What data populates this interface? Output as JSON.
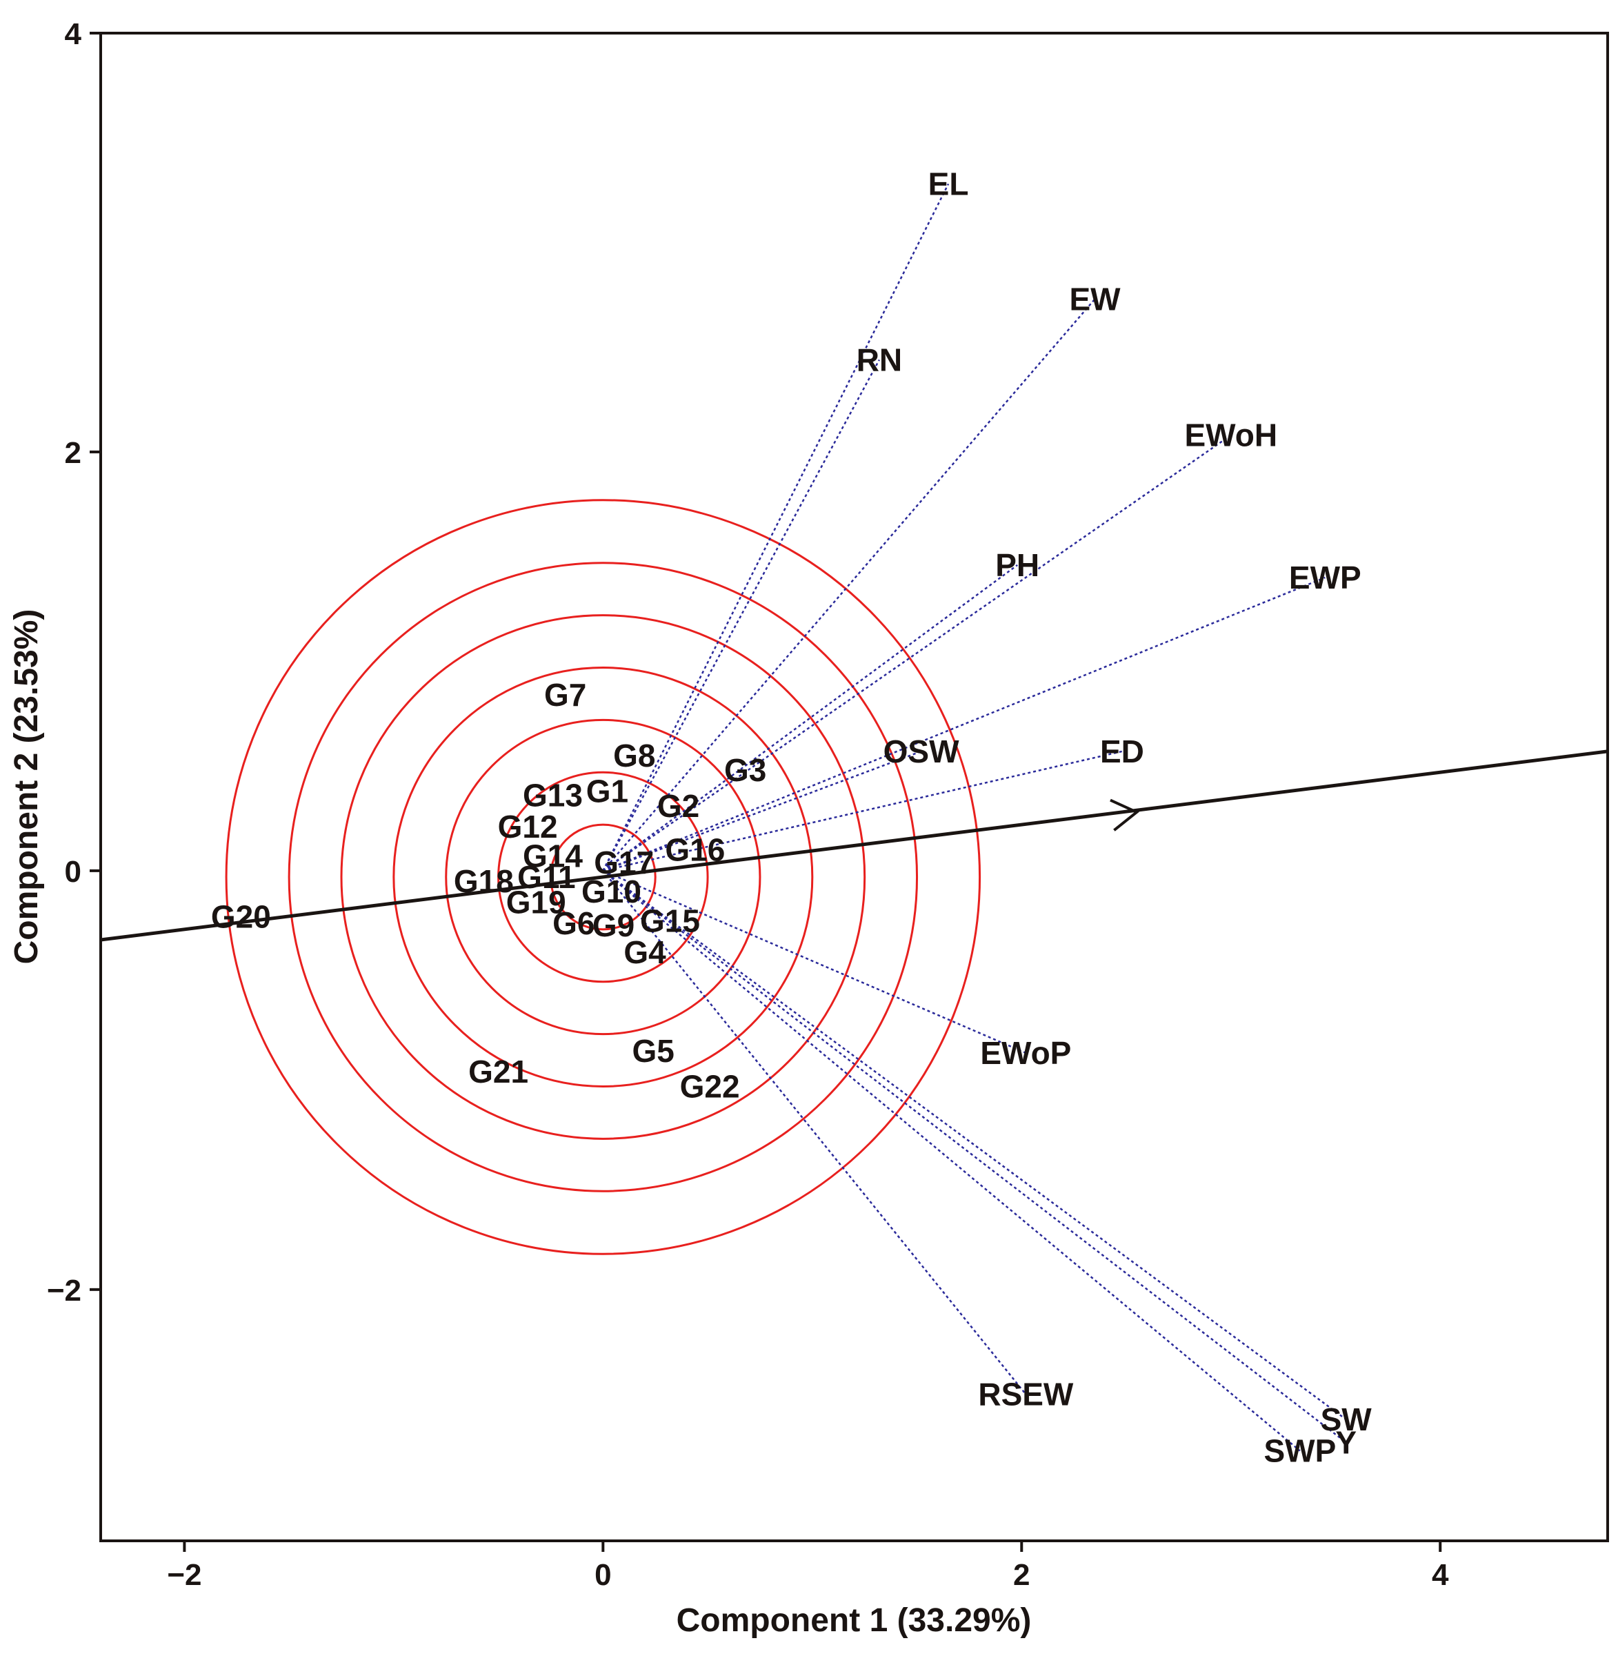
{
  "chart_data": {
    "type": "scatter",
    "subtype": "GGE biplot",
    "xlabel": "Component 1 (33.29%)",
    "ylabel": "Component 2 (23.53%)",
    "xlim": [
      -2.4,
      4.8
    ],
    "ylim": [
      -3.2,
      4.0
    ],
    "xticks": [
      -2,
      0,
      2,
      4
    ],
    "yticks": [
      -2,
      0,
      2,
      4
    ],
    "xtick_labels": [
      "−2",
      "0",
      "2",
      "4"
    ],
    "ytick_labels": [
      "−2",
      "0",
      "2",
      "4"
    ],
    "colors": {
      "axis": "#1a1412",
      "circles": "#e8201e",
      "vectors": "#2a2a9a",
      "labels": "#1a1412"
    },
    "ideal_circles_center": [
      0.0,
      -0.03
    ],
    "ideal_circles_radii": [
      0.25,
      0.5,
      0.75,
      1.0,
      1.25,
      1.5,
      1.8
    ],
    "average_environment_axis": {
      "from": [
        -2.4,
        -0.33
      ],
      "to": [
        4.8,
        0.57
      ],
      "arrow_at": [
        2.55,
        0.28
      ]
    },
    "traits": [
      {
        "name": "EL",
        "x": 1.65,
        "y": 3.28
      },
      {
        "name": "EW",
        "x": 2.35,
        "y": 2.73
      },
      {
        "name": "RN",
        "x": 1.32,
        "y": 2.44
      },
      {
        "name": "EWoH",
        "x": 3.0,
        "y": 2.08
      },
      {
        "name": "PH",
        "x": 1.98,
        "y": 1.46
      },
      {
        "name": "EWP",
        "x": 3.45,
        "y": 1.4
      },
      {
        "name": "OSW",
        "x": 1.52,
        "y": 0.57
      },
      {
        "name": "ED",
        "x": 2.48,
        "y": 0.57
      },
      {
        "name": "EWoP",
        "x": 2.02,
        "y": -0.87
      },
      {
        "name": "RSEW",
        "x": 2.02,
        "y": -2.5
      },
      {
        "name": "SW",
        "x": 3.55,
        "y": -2.62
      },
      {
        "name": "Y",
        "x": 3.55,
        "y": -2.73
      },
      {
        "name": "SWP",
        "x": 3.33,
        "y": -2.77
      }
    ],
    "genotypes": [
      {
        "name": "G1",
        "x": 0.02,
        "y": 0.38
      },
      {
        "name": "G2",
        "x": 0.36,
        "y": 0.31
      },
      {
        "name": "G3",
        "x": 0.68,
        "y": 0.48
      },
      {
        "name": "G4",
        "x": 0.2,
        "y": -0.39
      },
      {
        "name": "G5",
        "x": 0.24,
        "y": -0.86
      },
      {
        "name": "G6",
        "x": -0.14,
        "y": -0.25
      },
      {
        "name": "G7",
        "x": -0.18,
        "y": 0.84
      },
      {
        "name": "G8",
        "x": 0.15,
        "y": 0.55
      },
      {
        "name": "G9",
        "x": 0.05,
        "y": -0.26
      },
      {
        "name": "G10",
        "x": 0.04,
        "y": -0.1
      },
      {
        "name": "G11",
        "x": -0.27,
        "y": -0.03
      },
      {
        "name": "G12",
        "x": -0.36,
        "y": 0.21
      },
      {
        "name": "G13",
        "x": -0.24,
        "y": 0.36
      },
      {
        "name": "G14",
        "x": -0.24,
        "y": 0.07
      },
      {
        "name": "G15",
        "x": 0.32,
        "y": -0.24
      },
      {
        "name": "G16",
        "x": 0.44,
        "y": 0.1
      },
      {
        "name": "G17",
        "x": 0.1,
        "y": 0.04
      },
      {
        "name": "G18",
        "x": -0.57,
        "y": -0.05
      },
      {
        "name": "G19",
        "x": -0.32,
        "y": -0.15
      },
      {
        "name": "G20",
        "x": -1.73,
        "y": -0.22
      },
      {
        "name": "G21",
        "x": -0.5,
        "y": -0.96
      },
      {
        "name": "G22",
        "x": 0.51,
        "y": -1.03
      }
    ]
  }
}
